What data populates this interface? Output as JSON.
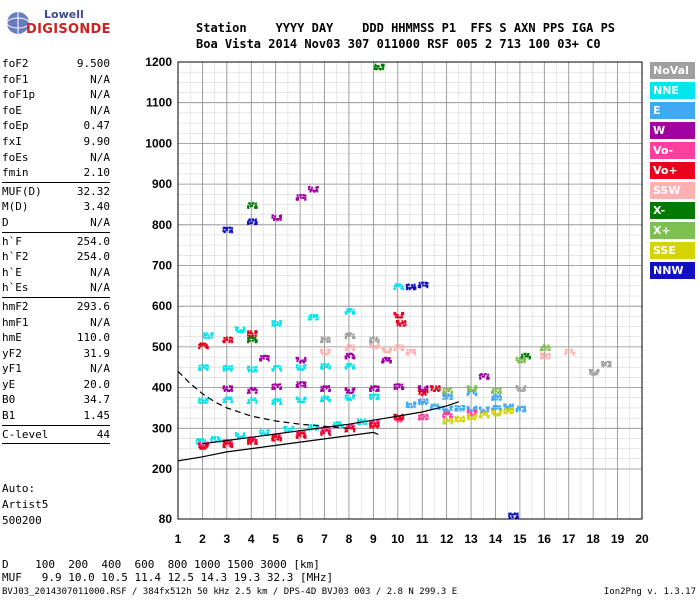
{
  "logo": {
    "line1": "Lowell",
    "line2": "DIGISONDE"
  },
  "header": {
    "line1": "Station    YYYY DAY    DDD HHMMSS P1  FFS S AXN PPS IGA PS",
    "line2": "Boa Vista 2014 Nov03 307 011000 RSF 005 2 713 100 03+ C0"
  },
  "parameters": [
    {
      "key": "foF2",
      "value": "9.500"
    },
    {
      "key": "foF1",
      "value": "N/A"
    },
    {
      "key": "foF1p",
      "value": "N/A"
    },
    {
      "key": "foE",
      "value": "N/A"
    },
    {
      "key": "foEp",
      "value": "0.47"
    },
    {
      "key": "fxI",
      "value": "9.90"
    },
    {
      "key": "foEs",
      "value": "N/A"
    },
    {
      "key": "fmin",
      "value": "2.10"
    },
    {
      "sep": true
    },
    {
      "key": "MUF(D)",
      "value": "32.32"
    },
    {
      "key": "M(D)",
      "value": "3.40"
    },
    {
      "key": "D",
      "value": "N/A"
    },
    {
      "sep": true
    },
    {
      "key": "h`F",
      "value": "254.0"
    },
    {
      "key": "h`F2",
      "value": "254.0"
    },
    {
      "key": "h`E",
      "value": "N/A"
    },
    {
      "key": "h`Es",
      "value": "N/A"
    },
    {
      "sep": true
    },
    {
      "key": "hmF2",
      "value": "293.6"
    },
    {
      "key": "hmF1",
      "value": "N/A"
    },
    {
      "key": "hmE",
      "value": "110.0"
    },
    {
      "key": "yF2",
      "value": "31.9"
    },
    {
      "key": "yF1",
      "value": "N/A"
    },
    {
      "key": "yE",
      "value": "20.0"
    },
    {
      "key": "B0",
      "value": "34.7"
    },
    {
      "key": "B1",
      "value": "1.45"
    },
    {
      "sep": true
    },
    {
      "key": "C-level",
      "value": "44"
    },
    {
      "sep": true
    }
  ],
  "auto": {
    "line1": "Auto:",
    "line2": "Artist5",
    "line3": "500200"
  },
  "legend": [
    {
      "label": "NoVal",
      "color": "#a0a0a0"
    },
    {
      "label": "NNE",
      "color": "#00e5ee"
    },
    {
      "label": "E",
      "color": "#3fa9f5"
    },
    {
      "label": "W",
      "color": "#a000a0"
    },
    {
      "label": "Vo-",
      "color": "#ff3fa0"
    },
    {
      "label": "Vo+",
      "color": "#e8001c"
    },
    {
      "label": "SSW",
      "color": "#ffb0b0"
    },
    {
      "label": "X-",
      "color": "#007a00"
    },
    {
      "label": "X+",
      "color": "#7cc050"
    },
    {
      "label": "SSE",
      "color": "#d4d400"
    },
    {
      "label": "NNW",
      "color": "#1010c0"
    }
  ],
  "dmuf": {
    "d_row": "D    100  200  400  600  800 1000 1500 3000 [km]",
    "muf_row": "MUF   9.9 10.0 10.5 11.4 12.5 14.3 19.3 32.3 [MHz]"
  },
  "footer": "BVJ03_2014307011000.RSF / 384fx512h 50 kHz 2.5 km / DPS-4D BVJ03 003 / 2.8 N 299.3 E",
  "version": "Ion2Png v. 1.3.17",
  "chart_data": {
    "type": "scatter",
    "title": "",
    "xlabel": "",
    "ylabel": "",
    "xlim": [
      1,
      20
    ],
    "ylim": [
      80,
      1200
    ],
    "xticks": [
      1,
      2,
      3,
      4,
      5,
      6,
      7,
      8,
      9,
      10,
      11,
      12,
      13,
      14,
      15,
      16,
      17,
      18,
      19,
      20
    ],
    "yticks": [
      80,
      200,
      300,
      400,
      500,
      600,
      700,
      800,
      900,
      1000,
      1100,
      1200
    ],
    "grid": true,
    "legend_position": "right",
    "series": [
      {
        "name": "NNE",
        "color": "#00e5ee",
        "points": [
          [
            1.9,
            270
          ],
          [
            2.5,
            275
          ],
          [
            3.5,
            285
          ],
          [
            4.5,
            292
          ],
          [
            5.5,
            300
          ],
          [
            6.5,
            305
          ],
          [
            7.5,
            312
          ],
          [
            8.5,
            318
          ],
          [
            2.0,
            370
          ],
          [
            3.0,
            372
          ],
          [
            4.0,
            370
          ],
          [
            5.0,
            368
          ],
          [
            6.0,
            372
          ],
          [
            7.0,
            375
          ],
          [
            8.0,
            378
          ],
          [
            9.0,
            380
          ],
          [
            2.0,
            452
          ],
          [
            3.0,
            450
          ],
          [
            4.0,
            448
          ],
          [
            5.0,
            450
          ],
          [
            6.0,
            452
          ],
          [
            7.0,
            455
          ],
          [
            8.0,
            455
          ],
          [
            2.2,
            530
          ],
          [
            3.5,
            545
          ],
          [
            5.0,
            560
          ],
          [
            6.5,
            575
          ],
          [
            8.0,
            590
          ],
          [
            10.0,
            650
          ]
        ]
      },
      {
        "name": "E",
        "color": "#3fa9f5",
        "points": [
          [
            11.5,
            355
          ],
          [
            12.0,
            350
          ],
          [
            12.5,
            352
          ],
          [
            13.0,
            350
          ],
          [
            13.5,
            348
          ],
          [
            14.0,
            352
          ],
          [
            14.5,
            355
          ],
          [
            15.0,
            350
          ],
          [
            12.0,
            380
          ],
          [
            13.0,
            390
          ],
          [
            14.0,
            378
          ],
          [
            10.5,
            360
          ],
          [
            11.0,
            368
          ]
        ]
      },
      {
        "name": "W",
        "color": "#a000a0",
        "points": [
          [
            3.0,
            400
          ],
          [
            4.0,
            395
          ],
          [
            5.0,
            405
          ],
          [
            6.0,
            410
          ],
          [
            7.0,
            400
          ],
          [
            8.0,
            395
          ],
          [
            9.0,
            400
          ],
          [
            10.0,
            405
          ],
          [
            11.0,
            400
          ],
          [
            4.5,
            475
          ],
          [
            6.0,
            470
          ],
          [
            8.0,
            480
          ],
          [
            9.5,
            470
          ],
          [
            13.5,
            430
          ],
          [
            5.0,
            820
          ],
          [
            6.0,
            870
          ],
          [
            6.5,
            890
          ]
        ]
      },
      {
        "name": "Vo-",
        "color": "#ff3fa0",
        "points": [
          [
            2.0,
            262
          ],
          [
            3.0,
            268
          ],
          [
            4.0,
            275
          ],
          [
            5.0,
            282
          ],
          [
            6.0,
            290
          ],
          [
            7.0,
            298
          ],
          [
            8.0,
            305
          ],
          [
            9.0,
            315
          ],
          [
            10.0,
            325
          ],
          [
            11.0,
            330
          ],
          [
            12.0,
            335
          ],
          [
            13.0,
            340
          ]
        ]
      },
      {
        "name": "Vo+",
        "color": "#e8001c",
        "points": [
          [
            2.0,
            258
          ],
          [
            3.0,
            262
          ],
          [
            4.0,
            270
          ],
          [
            5.0,
            278
          ],
          [
            6.0,
            285
          ],
          [
            7.0,
            292
          ],
          [
            8.0,
            300
          ],
          [
            9.0,
            310
          ],
          [
            10.0,
            330
          ],
          [
            11.0,
            390
          ],
          [
            11.5,
            400
          ],
          [
            2.0,
            505
          ],
          [
            3.0,
            520
          ],
          [
            4.0,
            535
          ],
          [
            10.0,
            580
          ],
          [
            10.1,
            560
          ]
        ]
      },
      {
        "name": "SSW",
        "color": "#ffb0b0",
        "points": [
          [
            7.0,
            490
          ],
          [
            8.0,
            500
          ],
          [
            9.0,
            505
          ],
          [
            9.5,
            495
          ],
          [
            10.0,
            500
          ],
          [
            10.5,
            490
          ],
          [
            16.0,
            480
          ],
          [
            17.0,
            490
          ]
        ]
      },
      {
        "name": "X-",
        "color": "#007a00",
        "points": [
          [
            9.2,
            1190
          ],
          [
            4.0,
            850
          ],
          [
            15.2,
            480
          ],
          [
            4.0,
            520
          ]
        ]
      },
      {
        "name": "X+",
        "color": "#7cc050",
        "points": [
          [
            12.0,
            395
          ],
          [
            13.0,
            400
          ],
          [
            14.0,
            395
          ],
          [
            15.0,
            470
          ],
          [
            16.0,
            500
          ]
        ]
      },
      {
        "name": "SSE",
        "color": "#d4d400",
        "points": [
          [
            12.0,
            320
          ],
          [
            12.5,
            325
          ],
          [
            13.0,
            330
          ],
          [
            13.5,
            335
          ],
          [
            14.0,
            340
          ],
          [
            14.5,
            345
          ]
        ]
      },
      {
        "name": "NNW",
        "color": "#1010c0",
        "points": [
          [
            10.5,
            650
          ],
          [
            11.0,
            655
          ],
          [
            3.0,
            790
          ],
          [
            4.0,
            810
          ],
          [
            14.7,
            90
          ]
        ]
      },
      {
        "name": "NoVal",
        "color": "#a0a0a0",
        "points": [
          [
            7.0,
            520
          ],
          [
            8.0,
            530
          ],
          [
            9.0,
            520
          ],
          [
            15.0,
            400
          ],
          [
            18.0,
            440
          ],
          [
            18.5,
            460
          ]
        ]
      }
    ],
    "traces": [
      {
        "type": "profile_solid",
        "points": [
          [
            1,
            220
          ],
          [
            2,
            230
          ],
          [
            3,
            242
          ],
          [
            4,
            250
          ],
          [
            5,
            258
          ],
          [
            6,
            266
          ],
          [
            7,
            274
          ],
          [
            8,
            282
          ],
          [
            9,
            290
          ],
          [
            9.2,
            285
          ]
        ]
      },
      {
        "type": "profile_solid",
        "points": [
          [
            2,
            262
          ],
          [
            3,
            270
          ],
          [
            4,
            278
          ],
          [
            5,
            286
          ],
          [
            6,
            294
          ],
          [
            7,
            302
          ],
          [
            8,
            310
          ],
          [
            9,
            320
          ],
          [
            10,
            330
          ],
          [
            11,
            340
          ],
          [
            12,
            355
          ],
          [
            12.5,
            365
          ]
        ]
      },
      {
        "type": "profile_dashed",
        "points": [
          [
            1,
            440
          ],
          [
            1.5,
            410
          ],
          [
            2,
            385
          ],
          [
            2.5,
            365
          ],
          [
            3,
            350
          ],
          [
            4,
            330
          ],
          [
            5,
            318
          ],
          [
            6,
            310
          ],
          [
            7,
            305
          ],
          [
            8,
            300
          ]
        ]
      }
    ]
  }
}
